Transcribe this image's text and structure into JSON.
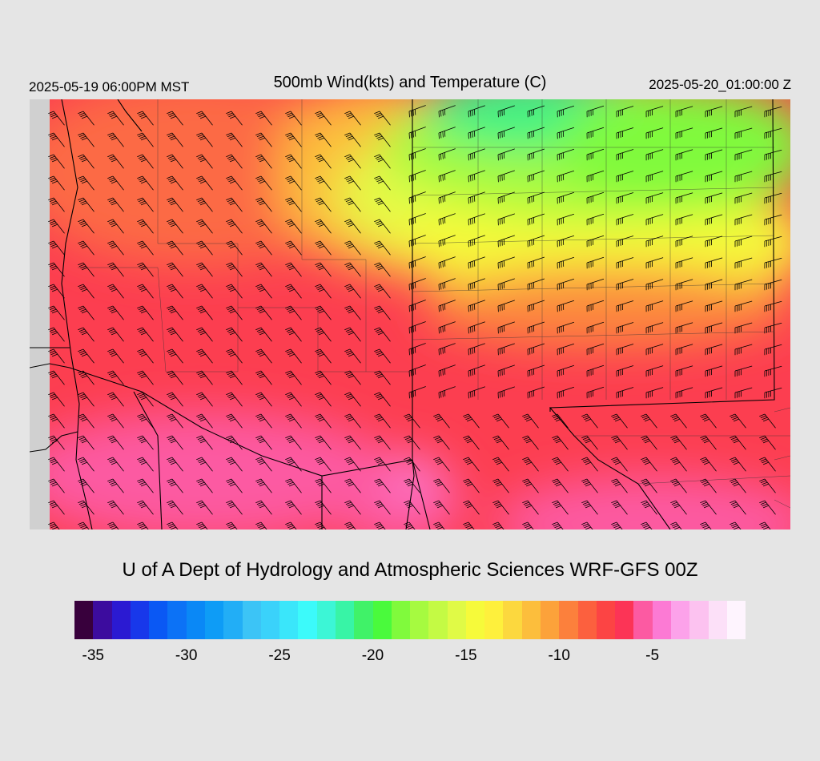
{
  "header": {
    "local_time": "2025-05-19 06:00PM MST",
    "title": "500mb Wind(kts) and Temperature (C)",
    "valid_time": "2025-05-20_01:00:00 Z"
  },
  "credit": "U of A Dept of Hydrology and Atmospheric Sciences WRF-GFS 00Z",
  "colorbar": {
    "colors": [
      "#38003c",
      "#3c0c9e",
      "#2b1ad2",
      "#1838ea",
      "#0a58f4",
      "#0c72f6",
      "#0a88f6",
      "#0e9cf6",
      "#22aef6",
      "#3cc4f6",
      "#3ad2fa",
      "#3ae6fa",
      "#3cfafa",
      "#3cf6d6",
      "#38f4a6",
      "#40f268",
      "#4afa3c",
      "#80fa3c",
      "#a6fa40",
      "#c4fa44",
      "#e0fa46",
      "#f6fa3a",
      "#fef03c",
      "#fcd83e",
      "#fcbe3c",
      "#fca23a",
      "#fc803c",
      "#fc603e",
      "#fc4444",
      "#fc3456",
      "#fc5aa2",
      "#fc7ad4",
      "#fca2ea",
      "#fcc2f0",
      "#fce0f8",
      "#fef4fe"
    ],
    "labels": [
      "-35",
      "-30",
      "-25",
      "-20",
      "-15",
      "-10",
      "-5"
    ],
    "label_values": [
      -35,
      -30,
      -25,
      -20,
      -15,
      -10,
      -5
    ],
    "min": -36,
    "max": 0
  }
}
